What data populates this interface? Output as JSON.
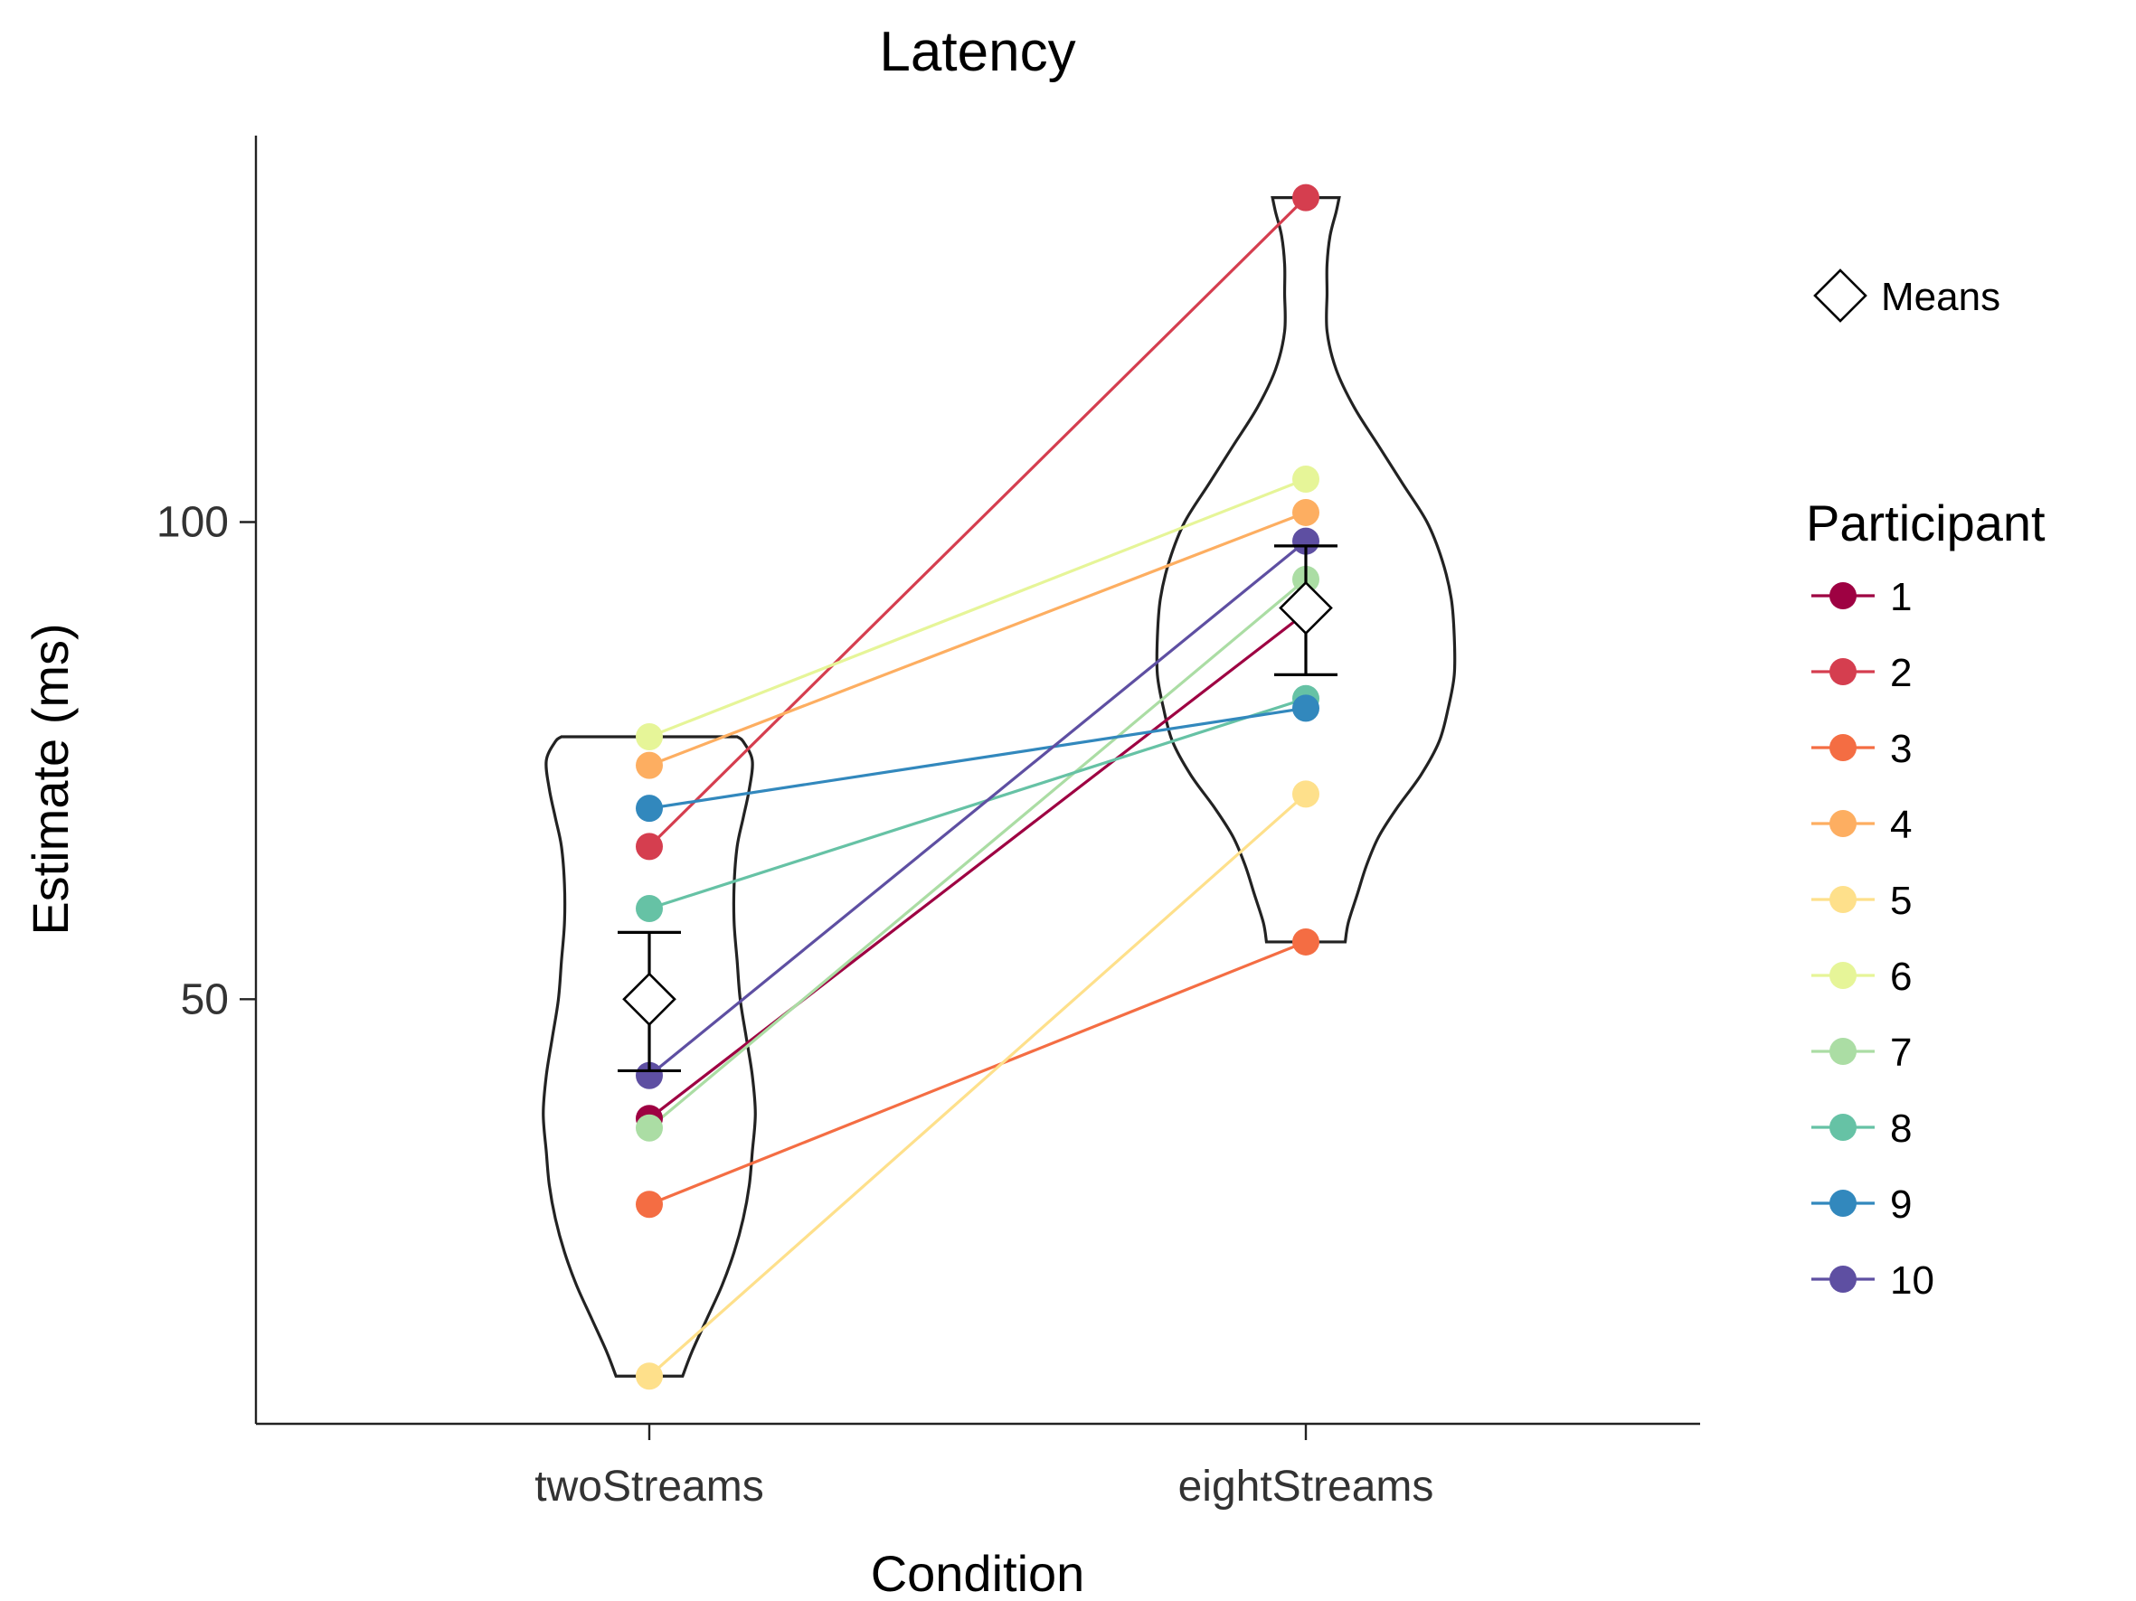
{
  "chart_data": {
    "type": "line",
    "title": "Latency",
    "xlabel": "Condition",
    "ylabel": "Estimate (ms)",
    "categories": [
      "twoStreams",
      "eightStreams"
    ],
    "ylim": [
      5.5,
      140.5
    ],
    "yticks": [
      50,
      100
    ],
    "grid": false,
    "legend_position": "right",
    "means_label": "Means",
    "legend_title": "Participant",
    "series": [
      {
        "name": "1",
        "color": "#9e0142",
        "values": [
          37.5,
          90.5
        ]
      },
      {
        "name": "2",
        "color": "#d53e4f",
        "values": [
          66.0,
          134.0
        ]
      },
      {
        "name": "3",
        "color": "#f46d43",
        "values": [
          28.5,
          56.0
        ]
      },
      {
        "name": "4",
        "color": "#fdae61",
        "values": [
          74.5,
          101.0
        ]
      },
      {
        "name": "5",
        "color": "#fee08b",
        "values": [
          10.5,
          71.5
        ]
      },
      {
        "name": "6",
        "color": "#e6f598",
        "values": [
          77.5,
          104.5
        ]
      },
      {
        "name": "7",
        "color": "#abdda4",
        "values": [
          36.5,
          94.0
        ]
      },
      {
        "name": "8",
        "color": "#66c2a5",
        "values": [
          59.5,
          81.5
        ]
      },
      {
        "name": "9",
        "color": "#3288bd",
        "values": [
          70.0,
          80.5
        ]
      },
      {
        "name": "10",
        "color": "#5e4fa2",
        "values": [
          42.0,
          98.0
        ]
      }
    ],
    "means": [
      {
        "category": "twoStreams",
        "mean": 50.0,
        "ci_low": 42.5,
        "ci_high": 57.0
      },
      {
        "category": "eightStreams",
        "mean": 91.0,
        "ci_low": 84.0,
        "ci_high": 97.5
      }
    ],
    "violins": [
      {
        "category": "twoStreams",
        "y_range": [
          10.5,
          77.5
        ],
        "half_width": [
          [
            10.5,
            0.11
          ],
          [
            13.0,
            0.14
          ],
          [
            16.5,
            0.19
          ],
          [
            20.0,
            0.24
          ],
          [
            23.5,
            0.28
          ],
          [
            27.0,
            0.31
          ],
          [
            30.5,
            0.33
          ],
          [
            34.0,
            0.34
          ],
          [
            38.0,
            0.35
          ],
          [
            42.0,
            0.34
          ],
          [
            46.0,
            0.32
          ],
          [
            50.0,
            0.3
          ],
          [
            54.0,
            0.29
          ],
          [
            58.0,
            0.28
          ],
          [
            62.0,
            0.28
          ],
          [
            66.0,
            0.29
          ],
          [
            69.0,
            0.31
          ],
          [
            72.0,
            0.33
          ],
          [
            75.0,
            0.34
          ],
          [
            77.0,
            0.31
          ],
          [
            77.5,
            0.29
          ]
        ]
      },
      {
        "category": "eightStreams",
        "y_range": [
          56.0,
          134.0
        ],
        "half_width": [
          [
            56.0,
            0.13
          ],
          [
            58.0,
            0.14
          ],
          [
            61.0,
            0.17
          ],
          [
            64.0,
            0.2
          ],
          [
            67.0,
            0.24
          ],
          [
            70.0,
            0.3
          ],
          [
            73.5,
            0.38
          ],
          [
            77.0,
            0.44
          ],
          [
            80.5,
            0.47
          ],
          [
            84.0,
            0.49
          ],
          [
            88.0,
            0.49
          ],
          [
            92.0,
            0.48
          ],
          [
            96.0,
            0.45
          ],
          [
            100.0,
            0.4
          ],
          [
            104.0,
            0.32
          ],
          [
            108.0,
            0.24
          ],
          [
            112.0,
            0.16
          ],
          [
            116.0,
            0.1
          ],
          [
            120.0,
            0.07
          ],
          [
            124.0,
            0.07
          ],
          [
            127.0,
            0.07
          ],
          [
            130.0,
            0.08
          ],
          [
            132.5,
            0.1
          ],
          [
            134.0,
            0.11
          ]
        ]
      }
    ]
  }
}
